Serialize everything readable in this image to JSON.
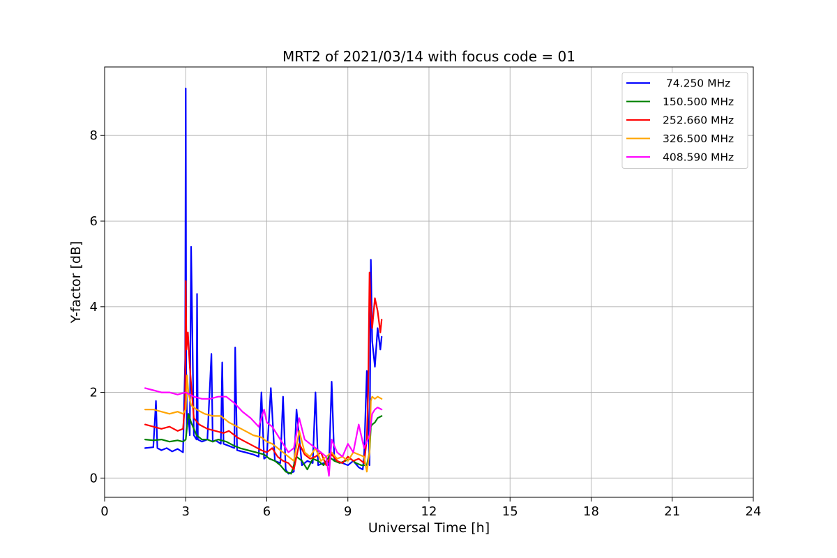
{
  "chart_data": {
    "type": "line",
    "title": "MRT2 of 2021/03/14 with focus code = 01",
    "xlabel": "Universal Time [h]",
    "ylabel": "Y-factor [dB]",
    "xlim": [
      0,
      24
    ],
    "ylim": [
      -0.45,
      9.6
    ],
    "x_ticks": [
      0,
      3,
      6,
      9,
      12,
      15,
      18,
      21,
      24
    ],
    "x_tick_labels": [
      "0",
      "3",
      "6",
      "9",
      "12",
      "15",
      "18",
      "21",
      "24"
    ],
    "y_ticks": [
      0,
      2,
      4,
      6,
      8
    ],
    "y_tick_labels": [
      "0",
      "2",
      "4",
      "6",
      "8"
    ],
    "grid": true,
    "legend_position": "top-right",
    "series": [
      {
        "name": " 74.250 MHz",
        "color": "#0000ff",
        "x": [
          1.5,
          1.8,
          1.9,
          1.95,
          2.1,
          2.3,
          2.5,
          2.7,
          2.9,
          2.98,
          3.0,
          3.02,
          3.05,
          3.1,
          3.15,
          3.2,
          3.3,
          3.4,
          3.42,
          3.45,
          3.6,
          3.8,
          3.95,
          4.0,
          4.1,
          4.3,
          4.35,
          4.4,
          4.6,
          4.8,
          4.83,
          4.9,
          5.2,
          5.5,
          5.7,
          5.8,
          5.9,
          6.0,
          6.15,
          6.3,
          6.5,
          6.6,
          6.7,
          6.8,
          7.0,
          7.1,
          7.3,
          7.5,
          7.7,
          7.8,
          7.9,
          8.1,
          8.3,
          8.4,
          8.5,
          8.8,
          9.0,
          9.2,
          9.4,
          9.55,
          9.6,
          9.7,
          9.8,
          9.85,
          9.9,
          10.0,
          10.1,
          10.2,
          10.25
        ],
        "y": [
          0.7,
          0.72,
          1.8,
          0.7,
          0.65,
          0.7,
          0.62,
          0.68,
          0.6,
          2.8,
          9.1,
          2.5,
          1.2,
          1.5,
          1.0,
          5.4,
          1.0,
          0.9,
          4.3,
          0.9,
          0.85,
          0.9,
          2.9,
          0.85,
          0.88,
          0.8,
          2.7,
          0.8,
          0.75,
          0.7,
          3.05,
          0.65,
          0.6,
          0.55,
          0.5,
          2.0,
          0.45,
          0.5,
          2.1,
          0.4,
          0.35,
          1.9,
          0.2,
          0.1,
          0.15,
          1.6,
          0.3,
          0.4,
          0.35,
          2.0,
          0.3,
          0.35,
          0.3,
          2.25,
          0.4,
          0.35,
          0.3,
          0.4,
          0.25,
          0.2,
          0.5,
          2.5,
          0.3,
          5.1,
          3.2,
          2.6,
          3.5,
          3.0,
          3.3
        ]
      },
      {
        "name": "150.500 MHz",
        "color": "#008000",
        "x": [
          1.5,
          1.8,
          2.1,
          2.4,
          2.7,
          2.9,
          3.0,
          3.1,
          3.2,
          3.4,
          3.6,
          3.8,
          4.0,
          4.2,
          4.5,
          4.8,
          5.0,
          5.3,
          5.6,
          5.9,
          6.1,
          6.3,
          6.5,
          6.7,
          6.9,
          7.1,
          7.3,
          7.5,
          7.7,
          7.9,
          8.1,
          8.3,
          8.5,
          8.7,
          8.9,
          9.1,
          9.3,
          9.5,
          9.7,
          9.8,
          9.85,
          9.9,
          10.0,
          10.1,
          10.25
        ],
        "y": [
          0.9,
          0.88,
          0.9,
          0.85,
          0.88,
          0.85,
          0.9,
          1.5,
          1.3,
          1.0,
          0.9,
          0.9,
          0.85,
          0.9,
          0.85,
          0.75,
          0.7,
          0.65,
          0.6,
          0.55,
          0.45,
          0.4,
          0.3,
          0.15,
          0.1,
          0.5,
          0.4,
          0.2,
          0.45,
          0.4,
          0.3,
          0.5,
          0.4,
          0.35,
          0.4,
          0.45,
          0.35,
          0.3,
          0.3,
          0.6,
          1.2,
          1.25,
          1.3,
          1.4,
          1.45
        ]
      },
      {
        "name": "252.660 MHz",
        "color": "#ff0000",
        "x": [
          1.5,
          1.8,
          2.1,
          2.4,
          2.7,
          2.9,
          2.98,
          3.0,
          3.03,
          3.08,
          3.15,
          3.3,
          3.5,
          3.8,
          4.1,
          4.4,
          4.6,
          4.9,
          5.2,
          5.5,
          5.8,
          6.0,
          6.2,
          6.4,
          6.6,
          6.8,
          7.0,
          7.2,
          7.4,
          7.6,
          7.8,
          8.0,
          8.2,
          8.4,
          8.6,
          8.8,
          9.0,
          9.2,
          9.4,
          9.6,
          9.7,
          9.75,
          9.8,
          9.85,
          9.9,
          10.0,
          10.1,
          10.2,
          10.25
        ],
        "y": [
          1.25,
          1.2,
          1.15,
          1.2,
          1.1,
          1.15,
          1.8,
          4.6,
          3.0,
          3.4,
          2.6,
          1.4,
          1.25,
          1.15,
          1.1,
          1.05,
          1.1,
          0.95,
          0.85,
          0.75,
          0.65,
          0.6,
          0.7,
          0.5,
          0.4,
          0.35,
          0.2,
          0.8,
          0.55,
          0.45,
          0.5,
          0.6,
          0.3,
          0.55,
          0.4,
          0.35,
          0.5,
          0.4,
          0.45,
          0.35,
          0.9,
          2.0,
          4.8,
          3.9,
          3.5,
          4.2,
          3.9,
          3.4,
          3.7
        ]
      },
      {
        "name": "326.500 MHz",
        "color": "#ffa500",
        "x": [
          1.5,
          1.8,
          2.1,
          2.4,
          2.7,
          2.9,
          3.0,
          3.05,
          3.1,
          3.2,
          3.4,
          3.7,
          4.0,
          4.3,
          4.6,
          4.9,
          5.2,
          5.5,
          5.8,
          6.0,
          6.2,
          6.4,
          6.6,
          6.8,
          7.0,
          7.2,
          7.4,
          7.6,
          7.8,
          8.0,
          8.2,
          8.4,
          8.6,
          8.8,
          9.0,
          9.2,
          9.4,
          9.6,
          9.7,
          9.8,
          9.85,
          9.9,
          10.0,
          10.1,
          10.25
        ],
        "y": [
          1.6,
          1.6,
          1.55,
          1.5,
          1.55,
          1.5,
          1.6,
          2.4,
          2.0,
          1.7,
          1.6,
          1.5,
          1.45,
          1.45,
          1.3,
          1.2,
          1.1,
          1.0,
          0.95,
          0.85,
          0.8,
          0.7,
          0.6,
          0.5,
          0.4,
          1.1,
          0.6,
          0.5,
          0.7,
          0.4,
          0.5,
          0.6,
          0.45,
          0.5,
          0.4,
          0.6,
          0.55,
          0.5,
          0.15,
          0.6,
          1.8,
          1.9,
          1.85,
          1.9,
          1.85
        ]
      },
      {
        "name": "408.590 MHz",
        "color": "#ff00ff",
        "x": [
          1.5,
          1.8,
          2.1,
          2.4,
          2.7,
          3.0,
          3.3,
          3.6,
          3.9,
          4.2,
          4.5,
          4.8,
          5.1,
          5.4,
          5.7,
          5.9,
          6.0,
          6.2,
          6.4,
          6.6,
          6.8,
          7.0,
          7.2,
          7.4,
          7.6,
          7.8,
          8.0,
          8.2,
          8.3,
          8.4,
          8.6,
          8.8,
          9.0,
          9.2,
          9.4,
          9.6,
          9.8,
          9.9,
          10.0,
          10.1,
          10.25
        ],
        "y": [
          2.1,
          2.05,
          2.0,
          2.0,
          1.95,
          2.0,
          1.9,
          1.85,
          1.85,
          1.9,
          1.9,
          1.75,
          1.55,
          1.4,
          1.2,
          1.6,
          1.3,
          1.2,
          1.0,
          0.8,
          0.6,
          0.7,
          1.4,
          0.9,
          0.8,
          0.7,
          0.6,
          0.5,
          0.05,
          0.9,
          0.6,
          0.5,
          0.8,
          0.6,
          1.25,
          0.7,
          1.0,
          1.5,
          1.6,
          1.65,
          1.6
        ]
      }
    ]
  }
}
